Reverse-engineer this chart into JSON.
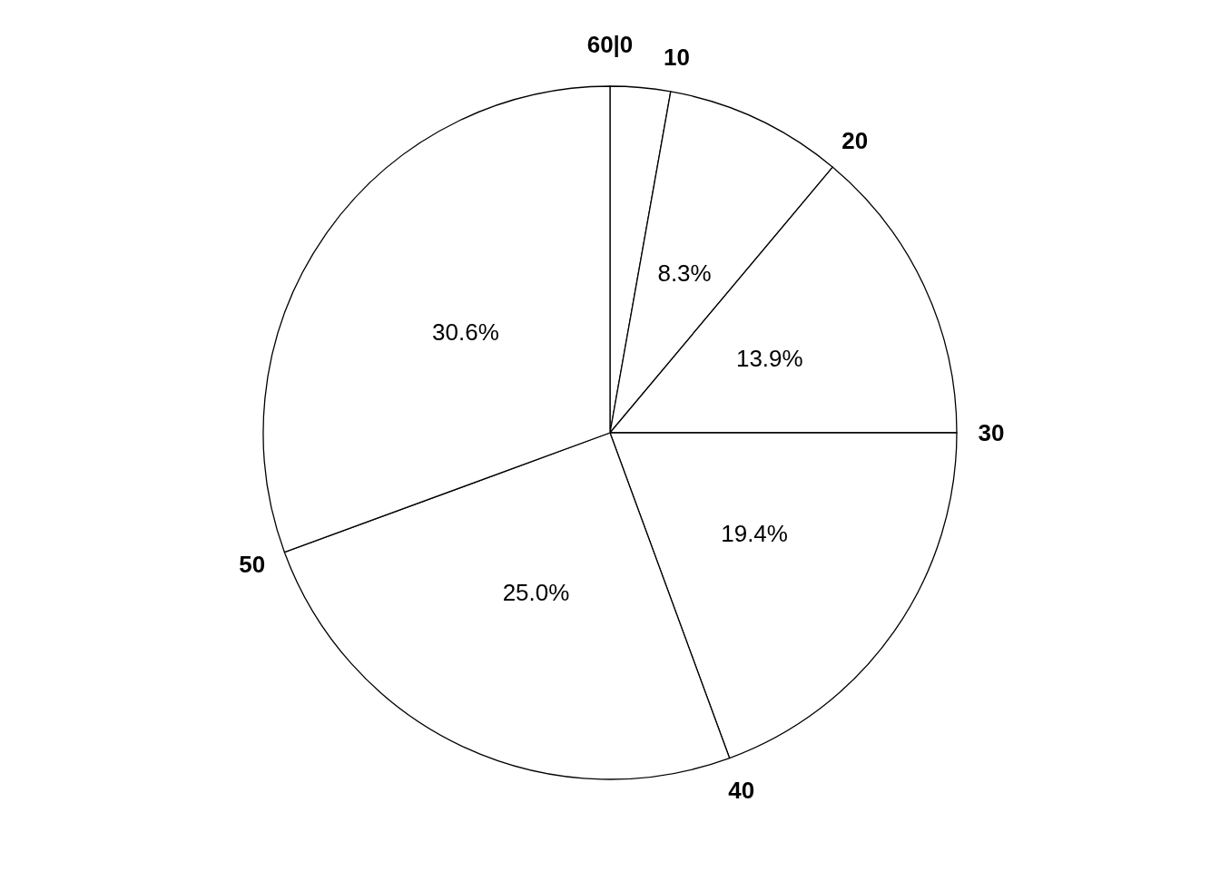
{
  "chart_data": {
    "type": "pie",
    "categories": [
      null,
      null,
      null,
      null,
      null,
      null
    ],
    "values": [
      2.8,
      8.3,
      13.9,
      19.4,
      25.0,
      30.6
    ],
    "colors": [
      "#ffffff",
      "#ffffff",
      "#ffffff",
      "#ffffff",
      "#ffffff",
      "#ffffff"
    ],
    "value_labels": [
      null,
      "8.3%",
      "13.9%",
      "19.4%",
      "25.0%",
      "30.6%"
    ],
    "annotations": [
      "60|0",
      "10",
      "20",
      "30",
      "40",
      "50"
    ]
  }
}
